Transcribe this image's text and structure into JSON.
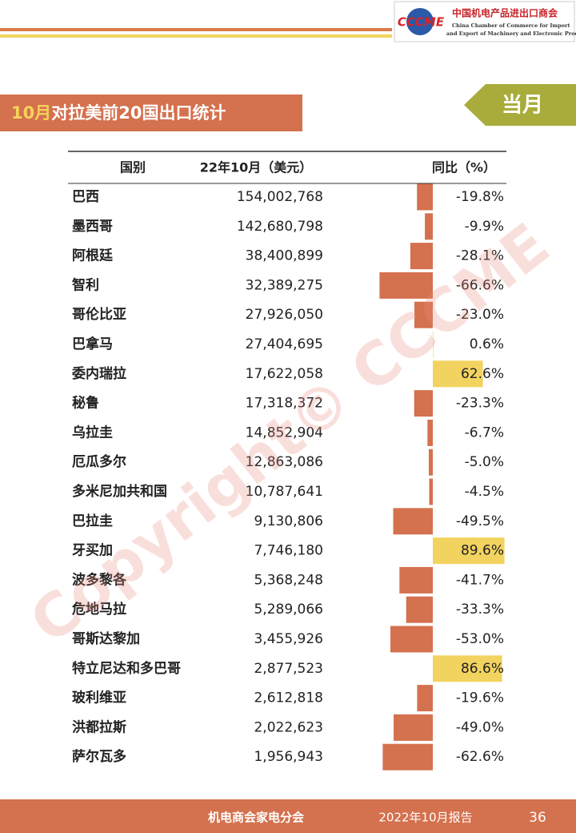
{
  "header": {
    "org_cn": "中国机电产品进出口商会",
    "org_en_1": "China Chamber of Commerce for Import",
    "org_en_2": "and Export of Machinery and Electronic Products",
    "logo": "CCCME",
    "title_month": "10月",
    "title_rest": "对拉美前20国出口统计",
    "badge": "当月"
  },
  "table": {
    "columns": [
      "国别",
      "22年10月（美元）",
      "同比（%）"
    ],
    "colors": {
      "negative": "#d4714e",
      "positive": "#f2d35f"
    },
    "rows": [
      {
        "name": "巴西",
        "value": "154,002,768",
        "yoy": -19.8,
        "yoy_label": "-19.8%"
      },
      {
        "name": "墨西哥",
        "value": "142,680,798",
        "yoy": -9.9,
        "yoy_label": "-9.9%"
      },
      {
        "name": "阿根廷",
        "value": "38,400,899",
        "yoy": -28.1,
        "yoy_label": "-28.1%"
      },
      {
        "name": "智利",
        "value": "32,389,275",
        "yoy": -66.6,
        "yoy_label": "-66.6%"
      },
      {
        "name": "哥伦比亚",
        "value": "27,926,050",
        "yoy": -23.0,
        "yoy_label": "-23.0%"
      },
      {
        "name": "巴拿马",
        "value": "27,404,695",
        "yoy": 0.6,
        "yoy_label": "0.6%"
      },
      {
        "name": "委内瑞拉",
        "value": "17,622,058",
        "yoy": 62.6,
        "yoy_label": "62.6%"
      },
      {
        "name": "秘鲁",
        "value": "17,318,372",
        "yoy": -23.3,
        "yoy_label": "-23.3%"
      },
      {
        "name": "乌拉圭",
        "value": "14,852,904",
        "yoy": -6.7,
        "yoy_label": "-6.7%"
      },
      {
        "name": "厄瓜多尔",
        "value": "12,863,086",
        "yoy": -5.0,
        "yoy_label": "-5.0%"
      },
      {
        "name": "多米尼加共和国",
        "value": "10,787,641",
        "yoy": -4.5,
        "yoy_label": "-4.5%"
      },
      {
        "name": "巴拉圭",
        "value": "9,130,806",
        "yoy": -49.5,
        "yoy_label": "-49.5%"
      },
      {
        "name": "牙买加",
        "value": "7,746,180",
        "yoy": 89.6,
        "yoy_label": "89.6%"
      },
      {
        "name": "波多黎各",
        "value": "5,368,248",
        "yoy": -41.7,
        "yoy_label": "-41.7%"
      },
      {
        "name": "危地马拉",
        "value": "5,289,066",
        "yoy": -33.3,
        "yoy_label": "-33.3%"
      },
      {
        "name": "哥斯达黎加",
        "value": "3,455,926",
        "yoy": -53.0,
        "yoy_label": "-53.0%"
      },
      {
        "name": "特立尼达和多巴哥",
        "value": "2,877,523",
        "yoy": 86.6,
        "yoy_label": "86.6%"
      },
      {
        "name": "玻利维亚",
        "value": "2,612,818",
        "yoy": -19.6,
        "yoy_label": "-19.6%"
      },
      {
        "name": "洪都拉斯",
        "value": "2,022,623",
        "yoy": -49.0,
        "yoy_label": "-49.0%"
      },
      {
        "name": "萨尔瓦多",
        "value": "1,956,943",
        "yoy": -62.6,
        "yoy_label": "-62.6%"
      }
    ]
  },
  "watermark": "Copyright© CCCME",
  "footer": {
    "org": "机电商会家电分会",
    "report": "2022年10月报告",
    "page": "36"
  }
}
